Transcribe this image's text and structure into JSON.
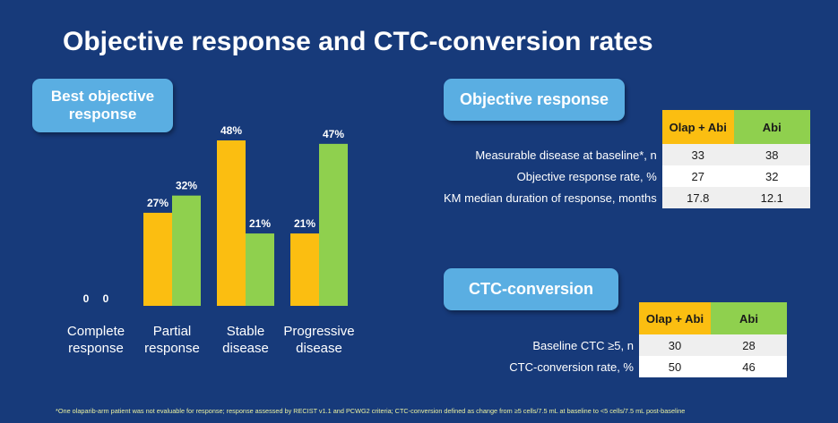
{
  "title": "Objective response and CTC-conversion rates",
  "best_response_label": "Best objective response",
  "objective_response_label": "Objective response",
  "ctc_conversion_label": "CTC-conversion",
  "chart_data": {
    "type": "bar",
    "categories": [
      "Complete response",
      "Partial response",
      "Stable disease",
      "Progressive disease"
    ],
    "category_lines": [
      [
        "Complete",
        "response"
      ],
      [
        "Partial",
        "response"
      ],
      [
        "Stable",
        "disease"
      ],
      [
        "Progressive",
        "disease"
      ]
    ],
    "series": [
      {
        "name": "Olap + Abi",
        "color": "#fbbe11",
        "values": [
          0,
          27,
          48,
          21
        ],
        "labels": [
          "0",
          "27%",
          "48%",
          "21%"
        ]
      },
      {
        "name": "Abi",
        "color": "#8fd04e",
        "values": [
          0,
          32,
          21,
          47
        ],
        "labels": [
          "0",
          "32%",
          "21%",
          "47%"
        ]
      }
    ],
    "ylim": [
      0,
      48
    ],
    "unit": "%",
    "grid": false
  },
  "objective_table": {
    "headers": [
      "Olap + Abi",
      "Abi"
    ],
    "rows": [
      {
        "label": "Measurable disease at baseline*, n",
        "values": [
          "33",
          "38"
        ]
      },
      {
        "label": "Objective response rate, %",
        "values": [
          "27",
          "32"
        ]
      },
      {
        "label": "KM median duration of response, months",
        "values": [
          "17.8",
          "12.1"
        ]
      }
    ]
  },
  "ctc_table": {
    "headers": [
      "Olap + Abi",
      "Abi"
    ],
    "rows": [
      {
        "label": "Baseline CTC ≥5, n",
        "values": [
          "30",
          "28"
        ]
      },
      {
        "label": "CTC-conversion rate, %",
        "values": [
          "50",
          "46"
        ]
      }
    ]
  },
  "footnote": "*One olaparib-arm patient was not evaluable for response; response assessed by RECIST v1.1 and PCWG2 criteria; CTC-conversion defined as change from ≥5 cells/7.5 mL at baseline to <5 cells/7.5 mL post-baseline",
  "colors": {
    "background": "#173a7a",
    "olap_abi": "#fbbe11",
    "abi": "#8fd04e",
    "pill": "#5aaee2"
  }
}
